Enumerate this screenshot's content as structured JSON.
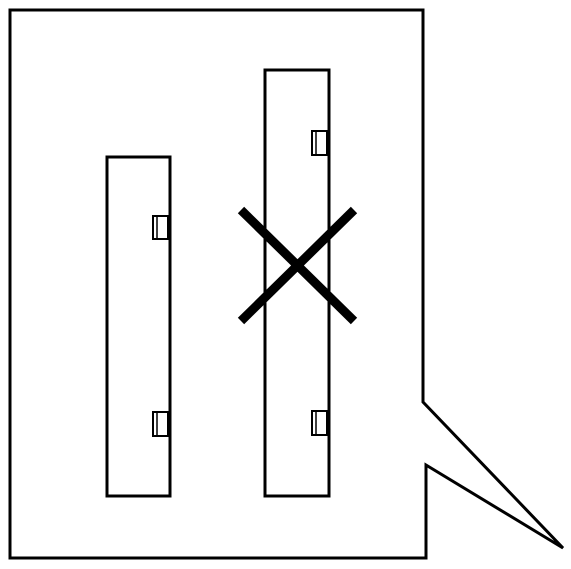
{
  "diagram": {
    "type": "callout-installation-illustration",
    "stroke_color": "#000000",
    "fill_color": "#ffffff",
    "panels": [
      {
        "name": "left-panel",
        "status": "correct",
        "clips": [
          "upper-clip",
          "lower-clip"
        ]
      },
      {
        "name": "right-panel",
        "status": "incorrect",
        "clips": [
          "upper-clip",
          "lower-clip"
        ],
        "mark": "x-mark-icon"
      }
    ]
  }
}
